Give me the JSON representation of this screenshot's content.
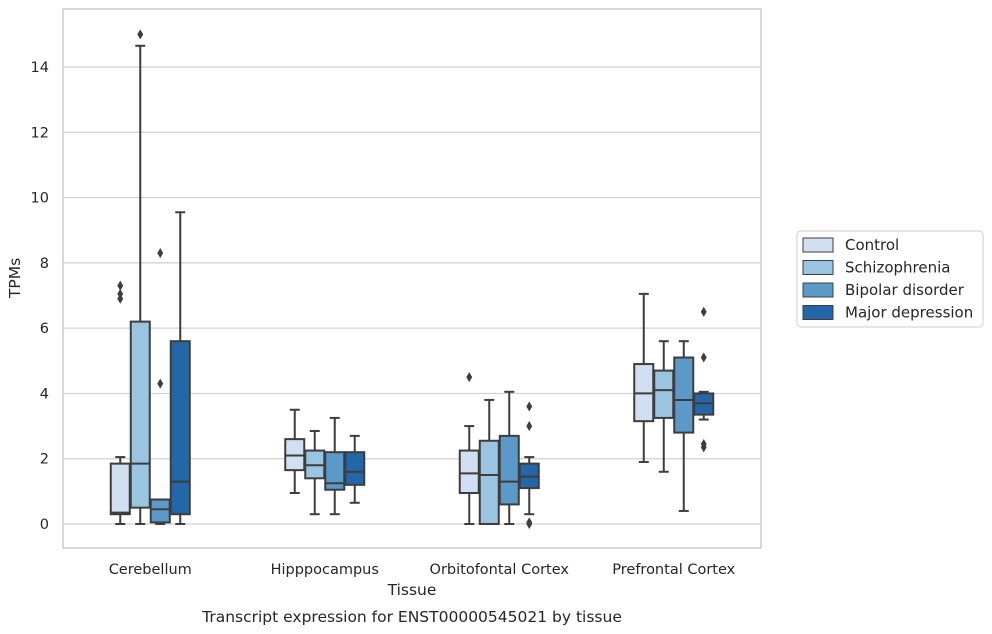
{
  "caption": "Transcript expression for ENST00000545021 by tissue",
  "chart_data": {
    "type": "box",
    "title": "",
    "xlabel": "Tissue",
    "ylabel": "TPMs",
    "ylim": [
      -0.7,
      15.9
    ],
    "yticks": [
      0,
      2,
      4,
      6,
      8,
      10,
      12,
      14
    ],
    "grid": "horizontal",
    "legend_position": "right",
    "categories": [
      "Cerebellum",
      "Hipppocampus",
      "Orbitofontal Cortex",
      "Prefrontal Cortex"
    ],
    "series": [
      {
        "name": "Control",
        "color": "#d0e0f0",
        "boxes": [
          {
            "whislo": 0.0,
            "q1": 0.3,
            "med": 0.35,
            "q3": 1.85,
            "whishi": 2.05,
            "fliers": []
          },
          {
            "whislo": 0.95,
            "q1": 1.65,
            "med": 2.1,
            "q3": 2.6,
            "whishi": 3.5,
            "fliers": []
          },
          {
            "whislo": 0.0,
            "q1": 0.95,
            "med": 1.55,
            "q3": 2.25,
            "whishi": 3.0,
            "fliers": [
              4.5
            ]
          },
          {
            "whislo": 1.9,
            "q1": 3.15,
            "med": 4.0,
            "q3": 4.9,
            "whishi": 7.05,
            "fliers": []
          }
        ]
      },
      {
        "name": "Schizophrenia",
        "color": "#9ac5e0",
        "boxes": [
          {
            "whislo": 0.0,
            "q1": 0.5,
            "med": 1.85,
            "q3": 6.2,
            "whishi": 14.65,
            "fliers": [
              15.0
            ]
          },
          {
            "whislo": 0.3,
            "q1": 1.4,
            "med": 1.8,
            "q3": 2.25,
            "whishi": 2.85,
            "fliers": []
          },
          {
            "whislo": 0.0,
            "q1": 0.0,
            "med": 1.5,
            "q3": 2.55,
            "whishi": 3.8,
            "fliers": []
          },
          {
            "whislo": 1.6,
            "q1": 3.25,
            "med": 4.1,
            "q3": 4.7,
            "whishi": 5.6,
            "fliers": []
          }
        ]
      },
      {
        "name": "Bipolar disorder",
        "color": "#5b9ac8",
        "boxes": [
          {
            "whislo": 0.0,
            "q1": 0.05,
            "med": 0.45,
            "q3": 0.75,
            "whishi": 0.75,
            "fliers": [
              4.3,
              8.3
            ]
          },
          {
            "whislo": 0.3,
            "q1": 1.05,
            "med": 1.25,
            "q3": 2.2,
            "whishi": 3.25,
            "fliers": []
          },
          {
            "whislo": 0.0,
            "q1": 0.6,
            "med": 1.3,
            "q3": 2.7,
            "whishi": 4.05,
            "fliers": []
          },
          {
            "whislo": 0.4,
            "q1": 2.8,
            "med": 3.8,
            "q3": 5.1,
            "whishi": 5.6,
            "fliers": []
          }
        ]
      },
      {
        "name": "Major depression",
        "color": "#2467a8",
        "boxes": [
          {
            "whislo": 0.0,
            "q1": 0.3,
            "med": 1.3,
            "q3": 5.6,
            "whishi": 9.55,
            "fliers": []
          },
          {
            "whislo": 0.65,
            "q1": 1.2,
            "med": 1.6,
            "q3": 2.2,
            "whishi": 2.7,
            "fliers": []
          },
          {
            "whislo": 0.3,
            "q1": 1.1,
            "med": 1.45,
            "q3": 1.85,
            "whishi": 2.05,
            "fliers": [
              0.0,
              0.05,
              3.0,
              3.6
            ]
          },
          {
            "whislo": 3.2,
            "q1": 3.35,
            "med": 3.7,
            "q3": 4.0,
            "whishi": 4.05,
            "fliers": [
              2.35,
              2.45,
              5.1,
              6.5
            ]
          }
        ]
      }
    ],
    "extra_fliers": [
      {
        "series": 0,
        "category": 0,
        "values": [
          6.9,
          7.05,
          7.3
        ]
      }
    ]
  }
}
